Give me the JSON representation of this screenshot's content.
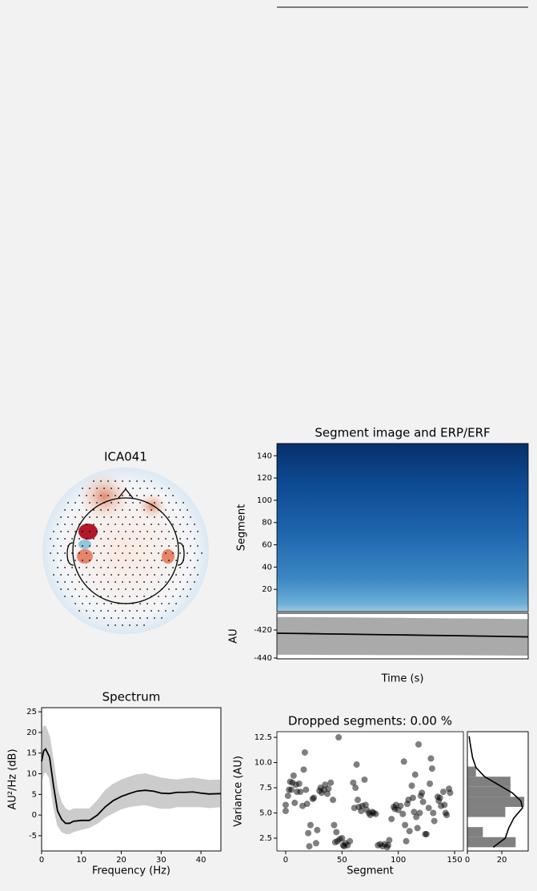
{
  "chart_data": [
    {
      "type": "topomap",
      "title": "ICA041"
    },
    {
      "type": "image",
      "title": "Segment image and ERP/ERF",
      "y_label": "Segment",
      "ylim": [
        0,
        151
      ],
      "yticks": [
        20,
        40,
        60,
        80,
        100,
        120,
        140
      ]
    },
    {
      "type": "line",
      "y_label": "AU",
      "x_label": "Time (s)",
      "color": "#000000",
      "band_color": "#aaaaaa",
      "values": [
        -422.3,
        -422.5,
        -422.8,
        -423.0,
        -423.3,
        -423.5,
        -423.8,
        -424.0,
        -424.3,
        -424.6,
        -424.9
      ],
      "upper": [
        -411.0,
        -411.1,
        -411.2,
        -411.3,
        -411.5,
        -411.6,
        -411.8,
        -411.9,
        -412.1,
        -412.3,
        -412.5
      ],
      "lower": [
        -437.4,
        -437.4,
        -437.5,
        -437.5,
        -437.6,
        -437.6,
        -437.7,
        -437.7,
        -437.8,
        -437.9,
        -438.0
      ],
      "ylim": [
        -440.6,
        -408
      ],
      "yticks": [
        -440,
        -420
      ]
    },
    {
      "type": "line",
      "title": "Spectrum",
      "x_label": "Frequency (Hz)",
      "y_label": "AU²/Hz (dB)",
      "color": "#000000",
      "band_color": "#cccccc",
      "x": [
        0,
        0.5,
        1,
        2,
        3,
        4,
        5,
        6,
        7,
        8,
        10,
        12,
        14,
        16,
        18,
        20,
        22,
        24,
        26,
        28,
        30,
        32,
        34,
        36,
        38,
        40,
        42,
        45
      ],
      "values": [
        13,
        15.5,
        16,
        14,
        7,
        1,
        -1,
        -2,
        -2,
        -1.5,
        -1.3,
        -1.3,
        0,
        2,
        3.5,
        4.5,
        5.2,
        5.8,
        6,
        5.8,
        5.3,
        5.2,
        5.5,
        5.5,
        5.6,
        5.3,
        5.1,
        5.2
      ],
      "upper": [
        19,
        21.5,
        21.5,
        19,
        13,
        6,
        3,
        1.5,
        1,
        1.5,
        1.5,
        1.5,
        3.5,
        6,
        7.5,
        8.5,
        9.2,
        9.8,
        10,
        9.5,
        9,
        8.7,
        8.5,
        8.8,
        9,
        8.7,
        8.4,
        8.5
      ],
      "lower": [
        8,
        10,
        10.5,
        9,
        2,
        -2.5,
        -4,
        -4.5,
        -4.5,
        -4,
        -3.5,
        -3,
        -2,
        -0.5,
        0.5,
        1.5,
        2,
        2.3,
        2.5,
        2,
        1.6,
        1.6,
        2,
        2,
        2,
        2,
        1.8,
        2
      ],
      "xlim": [
        0,
        45
      ],
      "xticks": [
        0,
        10,
        20,
        30,
        40
      ],
      "ylim": [
        -8.7,
        26
      ],
      "yticks": [
        -5,
        0,
        5,
        10,
        15,
        20,
        25
      ]
    },
    {
      "type": "scatter",
      "title": "Dropped segments: 0.00 %",
      "x_label": "Segment",
      "y_label": "Variance (AU)",
      "color": "#000000",
      "x": [
        0,
        0,
        2,
        3,
        4,
        5,
        6,
        7,
        8,
        9,
        10,
        12,
        13,
        15,
        16,
        17,
        18,
        19,
        20,
        21,
        22,
        24,
        25,
        27,
        28,
        30,
        31,
        32,
        34,
        35,
        37,
        38,
        40,
        42,
        43,
        44,
        45,
        46,
        47,
        48,
        50,
        51,
        52,
        53,
        55,
        57,
        60,
        61,
        62,
        63,
        64,
        65,
        67,
        68,
        70,
        71,
        72,
        74,
        75,
        77,
        78,
        80,
        82,
        84,
        86,
        88,
        90,
        91,
        92,
        94,
        96,
        97,
        98,
        100,
        102,
        104,
        105,
        106,
        107,
        108,
        109,
        110,
        112,
        113,
        114,
        115,
        116,
        117,
        118,
        119,
        120,
        121,
        122,
        124,
        125,
        127,
        128,
        129,
        130,
        131,
        132,
        135,
        136,
        137,
        138,
        140,
        141,
        142,
        143,
        145,
        146
      ],
      "values": [
        5.8,
        5.2,
        6.7,
        7.3,
        8.1,
        7.3,
        8.0,
        8.7,
        6.0,
        7.8,
        7.1,
        7.9,
        7.1,
        5.7,
        9.3,
        11.0,
        7.3,
        5.9,
        3.0,
        1.7,
        3.8,
        6.4,
        6.5,
        2.0,
        3.3,
        7.2,
        7.5,
        7.0,
        7.3,
        7.8,
        6.9,
        7.4,
        8.0,
        6.3,
        3.8,
        2.1,
        3.1,
        2.2,
        12.5,
        2.4,
        2.5,
        1.8,
        1.7,
        2.0,
        1.8,
        2.2,
        8.0,
        5.5,
        7.5,
        9.8,
        6.3,
        5.6,
        5.2,
        5.7,
        8.3,
        5.8,
        5.3,
        5.0,
        4.8,
        5.1,
        5.0,
        4.9,
        1.8,
        1.9,
        1.7,
        1.9,
        1.6,
        1.8,
        2.3,
        4.4,
        5.6,
        5.4,
        5.8,
        5.3,
        5.7,
        4.9,
        10.1,
        3.8,
        2.2,
        5.9,
        6.3,
        3.2,
        7.7,
        6.5,
        5.1,
        8.8,
        4.6,
        3.5,
        11.8,
        5.0,
        6.7,
        7.0,
        6.1,
        2.9,
        2.9,
        5.5,
        7.9,
        10.4,
        9.4,
        5.0,
        4.2,
        6.6,
        6.2,
        6.5,
        5.7,
        7.1,
        5.8,
        5.0,
        4.8,
        7.4,
        7.0
      ],
      "xlim": [
        -7.8,
        157.8
      ],
      "xticks": [
        0,
        50,
        100,
        150
      ],
      "ylim": [
        1.23,
        13.06
      ],
      "yticks": [
        2.5,
        {
          "value": 5,
          "label": "5.0"
        },
        7.5,
        {
          "value": 10,
          "label": "10.0"
        },
        12.5
      ]
    },
    {
      "type": "histogram",
      "orientation": "horizontal",
      "color": "#808080",
      "bins": [
        1.6,
        2.6,
        3.6,
        4.6,
        5.6,
        6.6,
        7.6,
        8.6,
        9.6,
        10.6,
        11.6,
        12.6
      ],
      "counts": [
        28,
        9,
        0,
        22,
        33,
        25,
        25,
        5,
        0,
        0,
        0
      ],
      "kde": {
        "x": [
          15,
          22,
          24,
          27,
          32,
          31,
          26,
          18,
          10,
          5,
          3,
          2,
          1
        ],
        "y": [
          1.6,
          2.5,
          3.5,
          4.5,
          5.5,
          6.2,
          7.0,
          7.8,
          8.6,
          9.5,
          10.5,
          11.5,
          12.6
        ]
      },
      "xlim": [
        0,
        35.3
      ],
      "xticks": [
        0,
        20
      ],
      "ylim": [
        1.23,
        13.06
      ]
    }
  ]
}
